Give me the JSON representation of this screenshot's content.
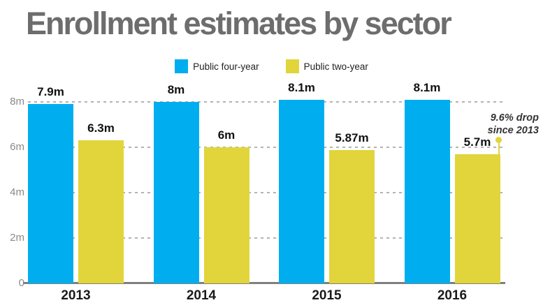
{
  "title": "Enrollment estimates by sector",
  "legend": {
    "items": [
      {
        "label": "Public four-year",
        "color": "#00aeef"
      },
      {
        "label": "Public two-year",
        "color": "#e1d53b"
      }
    ]
  },
  "colors": {
    "background": "#ffffff",
    "title_text": "#6d6d6d",
    "axis_text": "#8a8a8a",
    "gridline": "#b3b3b3",
    "baseline": "#7f7f7f",
    "year_label_text": "#1a1a1a",
    "value_label_text": "#111111",
    "annotation_text": "#333333",
    "four_year_blue": "#00aeef",
    "two_year_yellow": "#e1d53b"
  },
  "chart_data": {
    "type": "bar",
    "title": "Enrollment estimates by sector",
    "categories": [
      "2013",
      "2014",
      "2015",
      "2016"
    ],
    "series": [
      {
        "name": "Public four-year",
        "color": "#00aeef",
        "values": [
          7.9,
          8.0,
          8.1,
          8.1
        ],
        "value_labels": [
          "7.9m",
          "8m",
          "8.1m",
          "8.1m"
        ]
      },
      {
        "name": "Public two-year",
        "color": "#e1d53b",
        "values": [
          6.3,
          6.0,
          5.87,
          5.7
        ],
        "value_labels": [
          "6.3m",
          "6m",
          "5.87m",
          "5.7m"
        ]
      }
    ],
    "yticks": [
      {
        "value": 8,
        "label": "8m"
      },
      {
        "value": 6,
        "label": "6m"
      },
      {
        "value": 4,
        "label": "4m"
      },
      {
        "value": 2,
        "label": "2m"
      },
      {
        "value": 0,
        "label": "0"
      }
    ],
    "ylim": [
      0,
      8.6
    ],
    "grid": "horizontal-dashed",
    "legend_position": "top-center",
    "annotation": {
      "lines": [
        "9.6% drop",
        "since 2013"
      ],
      "target_series": "Public two-year",
      "target_category": "2016"
    }
  }
}
